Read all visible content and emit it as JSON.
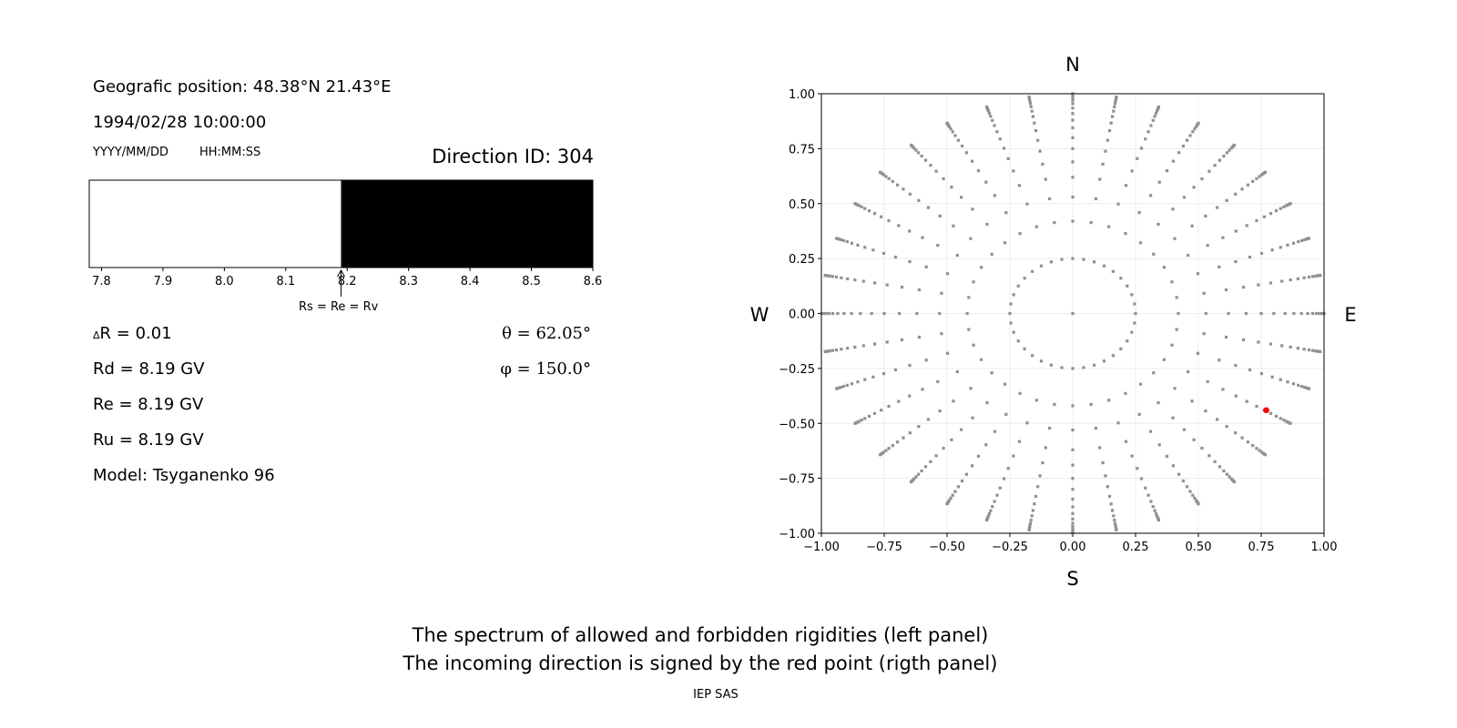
{
  "left_panel": {
    "position": "Geografic position: 48.38°N 21.43°E",
    "datetime": "1994/02/28 10:00:00",
    "date_format": "YYYY/MM/DD",
    "time_format": "HH:MM:SS",
    "direction_id": "Direction ID: 304",
    "delta_r_symbol": "Δ",
    "delta_r": "R = 0.01",
    "rd": "Rd = 8.19 GV",
    "re": "Re = 8.19 GV",
    "ru": "Ru = 8.19 GV",
    "model": "Model: Tsyganenko 96",
    "theta": "θ = 62.05°",
    "phi": "φ = 150.0°",
    "arrow_label": "Rs = Re = Rv"
  },
  "captions": {
    "line1": "The spectrum of allowed and forbidden rigidities (left panel)",
    "line2": "The incoming direction is signed by the red point (rigth panel)",
    "credit": "IEP SAS"
  },
  "chart_data": [
    {
      "type": "bar",
      "description_kind": "rigidity spectrum",
      "xlim": [
        7.78,
        8.6
      ],
      "xticks": [
        "7.8",
        "7.9",
        "8.0",
        "8.1",
        "8.2",
        "8.3",
        "8.4",
        "8.5",
        "8.6"
      ],
      "segments": [
        {
          "from": 7.78,
          "to": 8.19,
          "state": "allowed",
          "color": "#ffffff"
        },
        {
          "from": 8.19,
          "to": 8.6,
          "state": "forbidden",
          "color": "#000000"
        }
      ],
      "marker_value": 8.19
    },
    {
      "type": "scatter",
      "xlim": [
        -1,
        1
      ],
      "ylim": [
        -1,
        1
      ],
      "xticks": [
        "−1.00",
        "−0.75",
        "−0.50",
        "−0.25",
        "0.00",
        "0.25",
        "0.50",
        "0.75",
        "1.00"
      ],
      "yticks": [
        "1.00",
        "0.75",
        "0.50",
        "0.25",
        "0.00",
        "−0.25",
        "−0.50",
        "−0.75",
        "−1.00"
      ],
      "grid": true,
      "compass": {
        "top": "N",
        "bottom": "S",
        "left": "W",
        "right": "E"
      },
      "grid_points": {
        "color": "#909090",
        "center": [
          0,
          0
        ],
        "inner_ring_radius": 0.25,
        "azimuth_step_deg": 10,
        "spoke_radii": [
          0.42,
          0.53,
          0.62,
          0.69,
          0.75,
          0.8,
          0.845,
          0.88,
          0.91,
          0.935,
          0.955,
          0.97,
          0.982,
          0.99,
          0.997,
          1.0
        ]
      },
      "highlight_point": {
        "x": 0.77,
        "y": -0.44,
        "color": "#ff0000"
      }
    }
  ]
}
